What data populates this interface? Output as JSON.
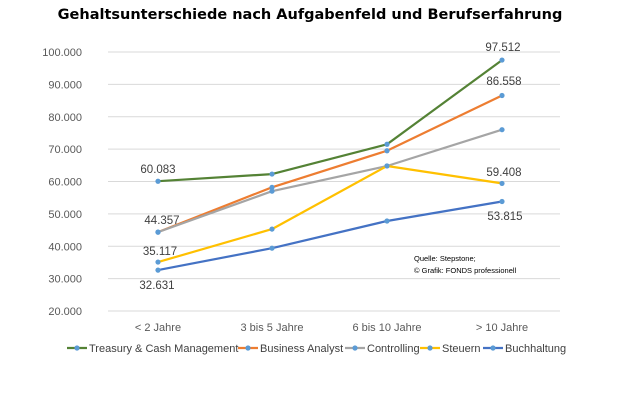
{
  "chart_data": {
    "type": "line",
    "title": "Gehaltsunterschiede nach Aufgabenfeld und Berufserfahrung",
    "categories": [
      "< 2 Jahre",
      "3 bis 5 Jahre",
      "6 bis 10 Jahre",
      "> 10 Jahre"
    ],
    "ylim": [
      20000,
      100000
    ],
    "yticks": [
      "20.000",
      "30.000",
      "40.000",
      "50.000",
      "60.000",
      "70.000",
      "80.000",
      "90.000",
      "100.000"
    ],
    "grid": true,
    "legend_position": "bottom",
    "series": [
      {
        "name": "Treasury & Cash Management",
        "color": "#548235",
        "values": [
          60083,
          62300,
          71500,
          97512
        ]
      },
      {
        "name": "Business Analyst",
        "color": "#ed7d31",
        "values": [
          44357,
          58200,
          69500,
          86558
        ]
      },
      {
        "name": "Controlling",
        "color": "#a5a5a5",
        "values": [
          44357,
          57000,
          64800,
          76000
        ]
      },
      {
        "name": "Steuern",
        "color": "#ffc000",
        "values": [
          35117,
          45300,
          64800,
          59408
        ]
      },
      {
        "name": "Buchhaltung",
        "color": "#4472c4",
        "values": [
          32631,
          39400,
          47800,
          53815
        ]
      }
    ],
    "data_labels": [
      "60.083",
      "44.357",
      "35.117",
      "32.631",
      "97.512",
      "86.558",
      "59.408",
      "53.815"
    ],
    "source": [
      "Quelle: Stepstone;",
      "© Grafik: FONDS professionell"
    ]
  }
}
